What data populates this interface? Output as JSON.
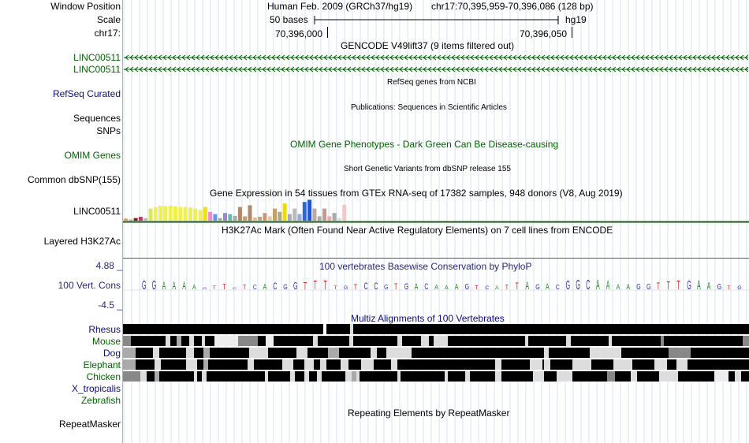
{
  "header": {
    "window_position_label": "Window Position",
    "scale_label": "Scale",
    "chrom_label": "chr17:",
    "assembly": "Human Feb. 2009 (GRCh37/hg19)",
    "position": "chr17:70,395,959-70,396,086 (128 bp)",
    "scale_text": "50 bases",
    "db": "hg19",
    "tick_left": "70,396,000",
    "tick_right": "70,396,050"
  },
  "tracks": {
    "gencode": {
      "title": "GENCODE V49lift37 (9 items filtered out)",
      "items": [
        "LINC00511",
        "LINC00511"
      ],
      "color": "#006400"
    },
    "refseq": {
      "title": "RefSeq genes from NCBI",
      "label": "RefSeq Curated",
      "color": "#0c0c78"
    },
    "publications": {
      "title": "Publications: Sequences in Scientific Articles",
      "label": "Sequences"
    },
    "snps_label": "SNPs",
    "omim": {
      "title": "OMIM Gene Phenotypes - Dark Green Can Be Disease-causing",
      "label": "OMIM Genes",
      "color": "#006400"
    },
    "dbsnp": {
      "title": "Short Genetic Variants from dbSNP release 155",
      "label": "Common dbSNP(155)"
    },
    "gtex": {
      "title": "Gene Expression in 54 tissues from GTEx RNA-seq of 17382 samples, 948 donors (V8, Aug 2019)",
      "label": "LINC00511",
      "bars": [
        {
          "v": 0.1,
          "c": "#ff9933"
        },
        {
          "v": 0.05,
          "c": "#c4a16a"
        },
        {
          "v": 0.12,
          "c": "#8b1a1a"
        },
        {
          "v": 0.18,
          "c": "#cc3366"
        },
        {
          "v": 0.12,
          "c": "#bbbbbb"
        },
        {
          "v": 0.55,
          "c": "#d8e85c"
        },
        {
          "v": 0.62,
          "c": "#f0f050"
        },
        {
          "v": 0.68,
          "c": "#f0f050"
        },
        {
          "v": 0.66,
          "c": "#f0f050"
        },
        {
          "v": 0.68,
          "c": "#f0f050"
        },
        {
          "v": 0.66,
          "c": "#f0f050"
        },
        {
          "v": 0.62,
          "c": "#f0f050"
        },
        {
          "v": 0.62,
          "c": "#f0f050"
        },
        {
          "v": 0.6,
          "c": "#f0f050"
        },
        {
          "v": 0.55,
          "c": "#f0f050"
        },
        {
          "v": 0.48,
          "c": "#f0f050"
        },
        {
          "v": 0.62,
          "c": "#eedd22"
        },
        {
          "v": 0.4,
          "c": "#ee88dd"
        },
        {
          "v": 0.3,
          "c": "#6699ee"
        },
        {
          "v": 0.12,
          "c": "#aaaaaa"
        },
        {
          "v": 0.35,
          "c": "#9988cc"
        },
        {
          "v": 0.3,
          "c": "#66bbaa"
        },
        {
          "v": 0.22,
          "c": "#aaaaaa"
        },
        {
          "v": 0.62,
          "c": "#b08a68"
        },
        {
          "v": 0.2,
          "c": "#cc9977"
        },
        {
          "v": 0.7,
          "c": "#b08a68"
        },
        {
          "v": 0.15,
          "c": "#eebb88"
        },
        {
          "v": 0.18,
          "c": "#bbaa88"
        },
        {
          "v": 0.35,
          "c": "#cc9977"
        },
        {
          "v": 0.2,
          "c": "#ddccaa"
        },
        {
          "v": 0.55,
          "c": "#c4a16a"
        },
        {
          "v": 0.4,
          "c": "#aaaa88"
        },
        {
          "v": 0.78,
          "c": "#eedd00"
        },
        {
          "v": 0.3,
          "c": "#aaaaaa"
        },
        {
          "v": 0.55,
          "c": "#bbbbbb"
        },
        {
          "v": 0.3,
          "c": "#99aadd"
        },
        {
          "v": 0.85,
          "c": "#3366cc"
        },
        {
          "v": 0.95,
          "c": "#2255cc"
        },
        {
          "v": 0.55,
          "c": "#bbaa99"
        },
        {
          "v": 0.2,
          "c": "#aaaaaa"
        },
        {
          "v": 0.55,
          "c": "#cc9988"
        },
        {
          "v": 0.2,
          "c": "#eeaaaa"
        },
        {
          "v": 0.35,
          "c": "#aaaaaa"
        },
        {
          "v": 0.12,
          "c": "#dddddd"
        },
        {
          "v": 0.72,
          "c": "#f4c8c8"
        }
      ]
    },
    "h3k27ac": {
      "title": "H3K27Ac Mark (Often Found Near Active Regulatory Elements) on 7 cell lines from ENCODE",
      "label": "Layered H3K27Ac"
    },
    "conservation": {
      "title": "100 vertebrates Basewise Conservation by PhyloP",
      "label": "100 Vert. Cons",
      "max": "4.88 _",
      "min": "-4.5 _",
      "color": "#28287a",
      "seq": "GGAAAAGTTCTCACGGTTTTGTCCGTGACAAAGTCATTAGACGGCAAAAGGTTTGAAGTG"
    },
    "multiz": {
      "title": "Multiz Alignments of 100 Vertebrates",
      "species": [
        {
          "name": "Rhesus",
          "color": "#0c0c78"
        },
        {
          "name": "Mouse",
          "color": "#006400"
        },
        {
          "name": "Dog",
          "color": "#0c0c78"
        },
        {
          "name": "Elephant",
          "color": "#006400"
        },
        {
          "name": "Chicken",
          "color": "#006400"
        },
        {
          "name": "X_tropicalis",
          "color": "#0c0c78"
        },
        {
          "name": "Zebrafish",
          "color": "#006400"
        }
      ]
    },
    "repeatmasker": {
      "title": "Repeating Elements by RepeatMasker",
      "label": "RepeatMasker"
    }
  }
}
